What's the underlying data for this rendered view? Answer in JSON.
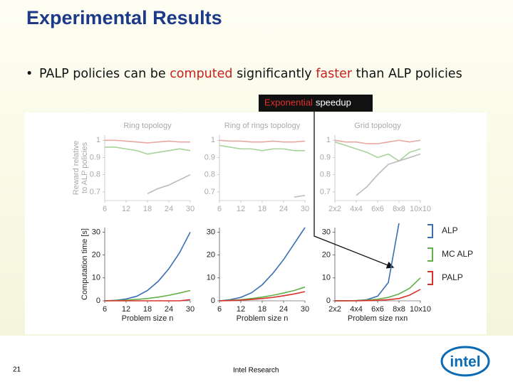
{
  "header": {
    "title": "Experimental Results"
  },
  "bullet": {
    "parts": [
      "PALP policies can be ",
      "computed",
      " significantly ",
      "faster",
      " than ALP policies"
    ]
  },
  "callout": {
    "parts": [
      "Exponential",
      "speedup"
    ]
  },
  "chart_data": [
    {
      "type": "line",
      "title": "Ring topology",
      "x": [
        6,
        9,
        12,
        15,
        18,
        21,
        24,
        27,
        30
      ],
      "xlim": [
        6,
        30
      ],
      "xticks": [
        6,
        12,
        18,
        24,
        30
      ],
      "ylim": [
        0.65,
        1.03
      ],
      "yticks": [
        0.7,
        0.8,
        0.9,
        1
      ],
      "y_label": [
        "Reward relative",
        "to ALP policies"
      ],
      "series": [
        {
          "color": "#e8a8a2",
          "values": [
            1,
            1,
            0.995,
            0.99,
            0.985,
            0.99,
            0.995,
            0.99,
            0.99
          ]
        },
        {
          "color": "#a8d39a",
          "values": [
            0.96,
            0.96,
            0.95,
            0.94,
            0.92,
            0.93,
            0.94,
            0.95,
            0.94
          ]
        },
        {
          "color": "#bbbbbb",
          "values": [
            null,
            null,
            null,
            null,
            0.69,
            0.72,
            0.74,
            0.77,
            0.8
          ]
        }
      ]
    },
    {
      "type": "line",
      "title": "Ring of rings topology",
      "x": [
        6,
        9,
        12,
        15,
        18,
        21,
        24,
        27,
        30
      ],
      "xlim": [
        6,
        30
      ],
      "xticks": [
        6,
        12,
        18,
        24,
        30
      ],
      "ylim": [
        0.65,
        1.03
      ],
      "yticks": [
        0.7,
        0.8,
        0.9,
        1
      ],
      "series": [
        {
          "color": "#e8a8a2",
          "values": [
            1,
            0.995,
            0.995,
            0.99,
            0.99,
            0.995,
            0.99,
            0.99,
            0.995
          ]
        },
        {
          "color": "#a8d39a",
          "values": [
            0.97,
            0.96,
            0.95,
            0.95,
            0.94,
            0.95,
            0.95,
            0.94,
            0.94
          ]
        },
        {
          "color": "#bbbbbb",
          "values": [
            null,
            null,
            null,
            null,
            null,
            null,
            null,
            0.67,
            0.68
          ]
        }
      ]
    },
    {
      "type": "line",
      "title": "Grid topology",
      "x": [
        2,
        3,
        4,
        5,
        6,
        7,
        8,
        9,
        10
      ],
      "xlim": [
        2,
        10
      ],
      "xticks": [
        {
          "value": 2,
          "label": "2x2"
        },
        {
          "value": 4,
          "label": "4x4"
        },
        {
          "value": 6,
          "label": "6x6"
        },
        {
          "value": 8,
          "label": "8x8"
        },
        {
          "value": 10,
          "label": "10x10"
        }
      ],
      "ylim": [
        0.65,
        1.03
      ],
      "yticks": [
        0.7,
        0.8,
        0.9,
        1
      ],
      "series": [
        {
          "color": "#e8a8a2",
          "values": [
            1,
            0.99,
            0.99,
            0.98,
            0.98,
            0.99,
            1,
            0.99,
            1
          ]
        },
        {
          "color": "#a8d39a",
          "values": [
            0.99,
            0.97,
            0.95,
            0.93,
            0.9,
            0.92,
            0.88,
            0.93,
            0.95
          ]
        },
        {
          "color": "#bbbbbb",
          "values": [
            null,
            null,
            0.68,
            0.73,
            0.8,
            0.86,
            0.88,
            0.9,
            0.92
          ]
        }
      ]
    },
    {
      "type": "line",
      "x": [
        6,
        9,
        12,
        15,
        18,
        21,
        24,
        27,
        30
      ],
      "xlim": [
        6,
        30
      ],
      "xticks": [
        6,
        12,
        18,
        24,
        30
      ],
      "ylim": [
        0,
        32
      ],
      "yticks": [
        0,
        10,
        20,
        30
      ],
      "y_label": "Computation time [s]",
      "x_label": "Problem size n",
      "series": [
        {
          "color": "#3a6fb5",
          "values": [
            0,
            0.2,
            0.8,
            2,
            4.5,
            8.5,
            14,
            21,
            30
          ]
        },
        {
          "color": "#62b04a",
          "values": [
            0,
            0.1,
            0.3,
            0.6,
            1,
            1.6,
            2.4,
            3.4,
            4.5
          ]
        },
        {
          "color": "#d9322b",
          "values": [
            0,
            0,
            0,
            0,
            0,
            0,
            0,
            0,
            0.5
          ]
        }
      ]
    },
    {
      "type": "line",
      "x": [
        6,
        9,
        12,
        15,
        18,
        21,
        24,
        27,
        30
      ],
      "xlim": [
        6,
        30
      ],
      "xticks": [
        6,
        12,
        18,
        24,
        30
      ],
      "ylim": [
        0,
        32
      ],
      "yticks": [
        0,
        10,
        20,
        30
      ],
      "x_label": "Problem size n",
      "series": [
        {
          "color": "#3a6fb5",
          "values": [
            0,
            0.5,
            1.5,
            3.5,
            7,
            12,
            18,
            25,
            32
          ]
        },
        {
          "color": "#62b04a",
          "values": [
            0,
            0.2,
            0.5,
            1,
            1.6,
            2.4,
            3.4,
            4.5,
            6
          ]
        },
        {
          "color": "#d9322b",
          "values": [
            0,
            0.1,
            0.3,
            0.6,
            1,
            1.5,
            2.2,
            3,
            4
          ]
        }
      ]
    },
    {
      "type": "line",
      "x": [
        2,
        3,
        4,
        5,
        6,
        7,
        8,
        9,
        10
      ],
      "xlim": [
        2,
        10
      ],
      "xticks": [
        {
          "value": 2,
          "label": "2x2"
        },
        {
          "value": 4,
          "label": "4x4"
        },
        {
          "value": 6,
          "label": "6x6"
        },
        {
          "value": 8,
          "label": "8x8"
        },
        {
          "value": 10,
          "label": "10x10"
        }
      ],
      "ylim": [
        0,
        32
      ],
      "yticks": [
        0,
        10,
        20,
        30
      ],
      "x_label": "Problem size nxn",
      "series": [
        {
          "name": "ALP",
          "color": "#3a6fb5",
          "values": [
            0,
            0,
            0.1,
            0.5,
            2,
            8,
            34,
            null,
            null
          ]
        },
        {
          "name": "MC ALP",
          "color": "#62b04a",
          "values": [
            0,
            0,
            0.1,
            0.3,
            0.7,
            1.5,
            3,
            5.5,
            10
          ]
        },
        {
          "name": "PALP",
          "color": "#d9322b",
          "values": [
            0,
            0,
            0,
            0.1,
            0.2,
            0.5,
            1,
            2.5,
            5
          ]
        }
      ]
    }
  ],
  "footer": {
    "page": "21",
    "text": "Intel Research",
    "logo": "intel"
  }
}
